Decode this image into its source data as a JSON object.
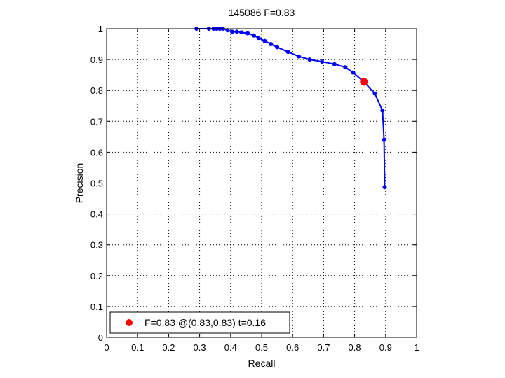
{
  "chart_data": {
    "type": "line",
    "title": "145086 F=0.83",
    "xlabel": "Recall",
    "ylabel": "Precision",
    "xlim": [
      0,
      1
    ],
    "ylim": [
      0,
      1
    ],
    "xticks": [
      "0",
      "0.1",
      "0.2",
      "0.3",
      "0.4",
      "0.5",
      "0.6",
      "0.7",
      "0.8",
      "0.9",
      "1"
    ],
    "yticks": [
      "0",
      "0.1",
      "0.2",
      "0.3",
      "0.4",
      "0.5",
      "0.6",
      "0.7",
      "0.8",
      "0.9",
      "1"
    ],
    "grid": true,
    "legend_position": "bottom-left",
    "series": [
      {
        "color": "#0000ff",
        "x": [
          0.29,
          0.33,
          0.345,
          0.355,
          0.365,
          0.375,
          0.39,
          0.405,
          0.42,
          0.435,
          0.455,
          0.475,
          0.49,
          0.51,
          0.53,
          0.55,
          0.585,
          0.62,
          0.655,
          0.695,
          0.735,
          0.77,
          0.795,
          0.83,
          0.865,
          0.89,
          0.895,
          0.897
        ],
        "y": [
          1.0,
          1.0,
          1.0,
          1.0,
          1.0,
          1.0,
          0.995,
          0.99,
          0.99,
          0.988,
          0.985,
          0.978,
          0.97,
          0.96,
          0.95,
          0.94,
          0.925,
          0.91,
          0.9,
          0.893,
          0.885,
          0.875,
          0.858,
          0.828,
          0.79,
          0.735,
          0.64,
          0.487
        ]
      }
    ],
    "highlight_point": {
      "x": 0.83,
      "y": 0.828,
      "color": "#ff0000"
    },
    "legend": [
      {
        "label": "F=0.83 @(0.83,0.83) t=0.16",
        "color": "#ff0000"
      }
    ]
  }
}
